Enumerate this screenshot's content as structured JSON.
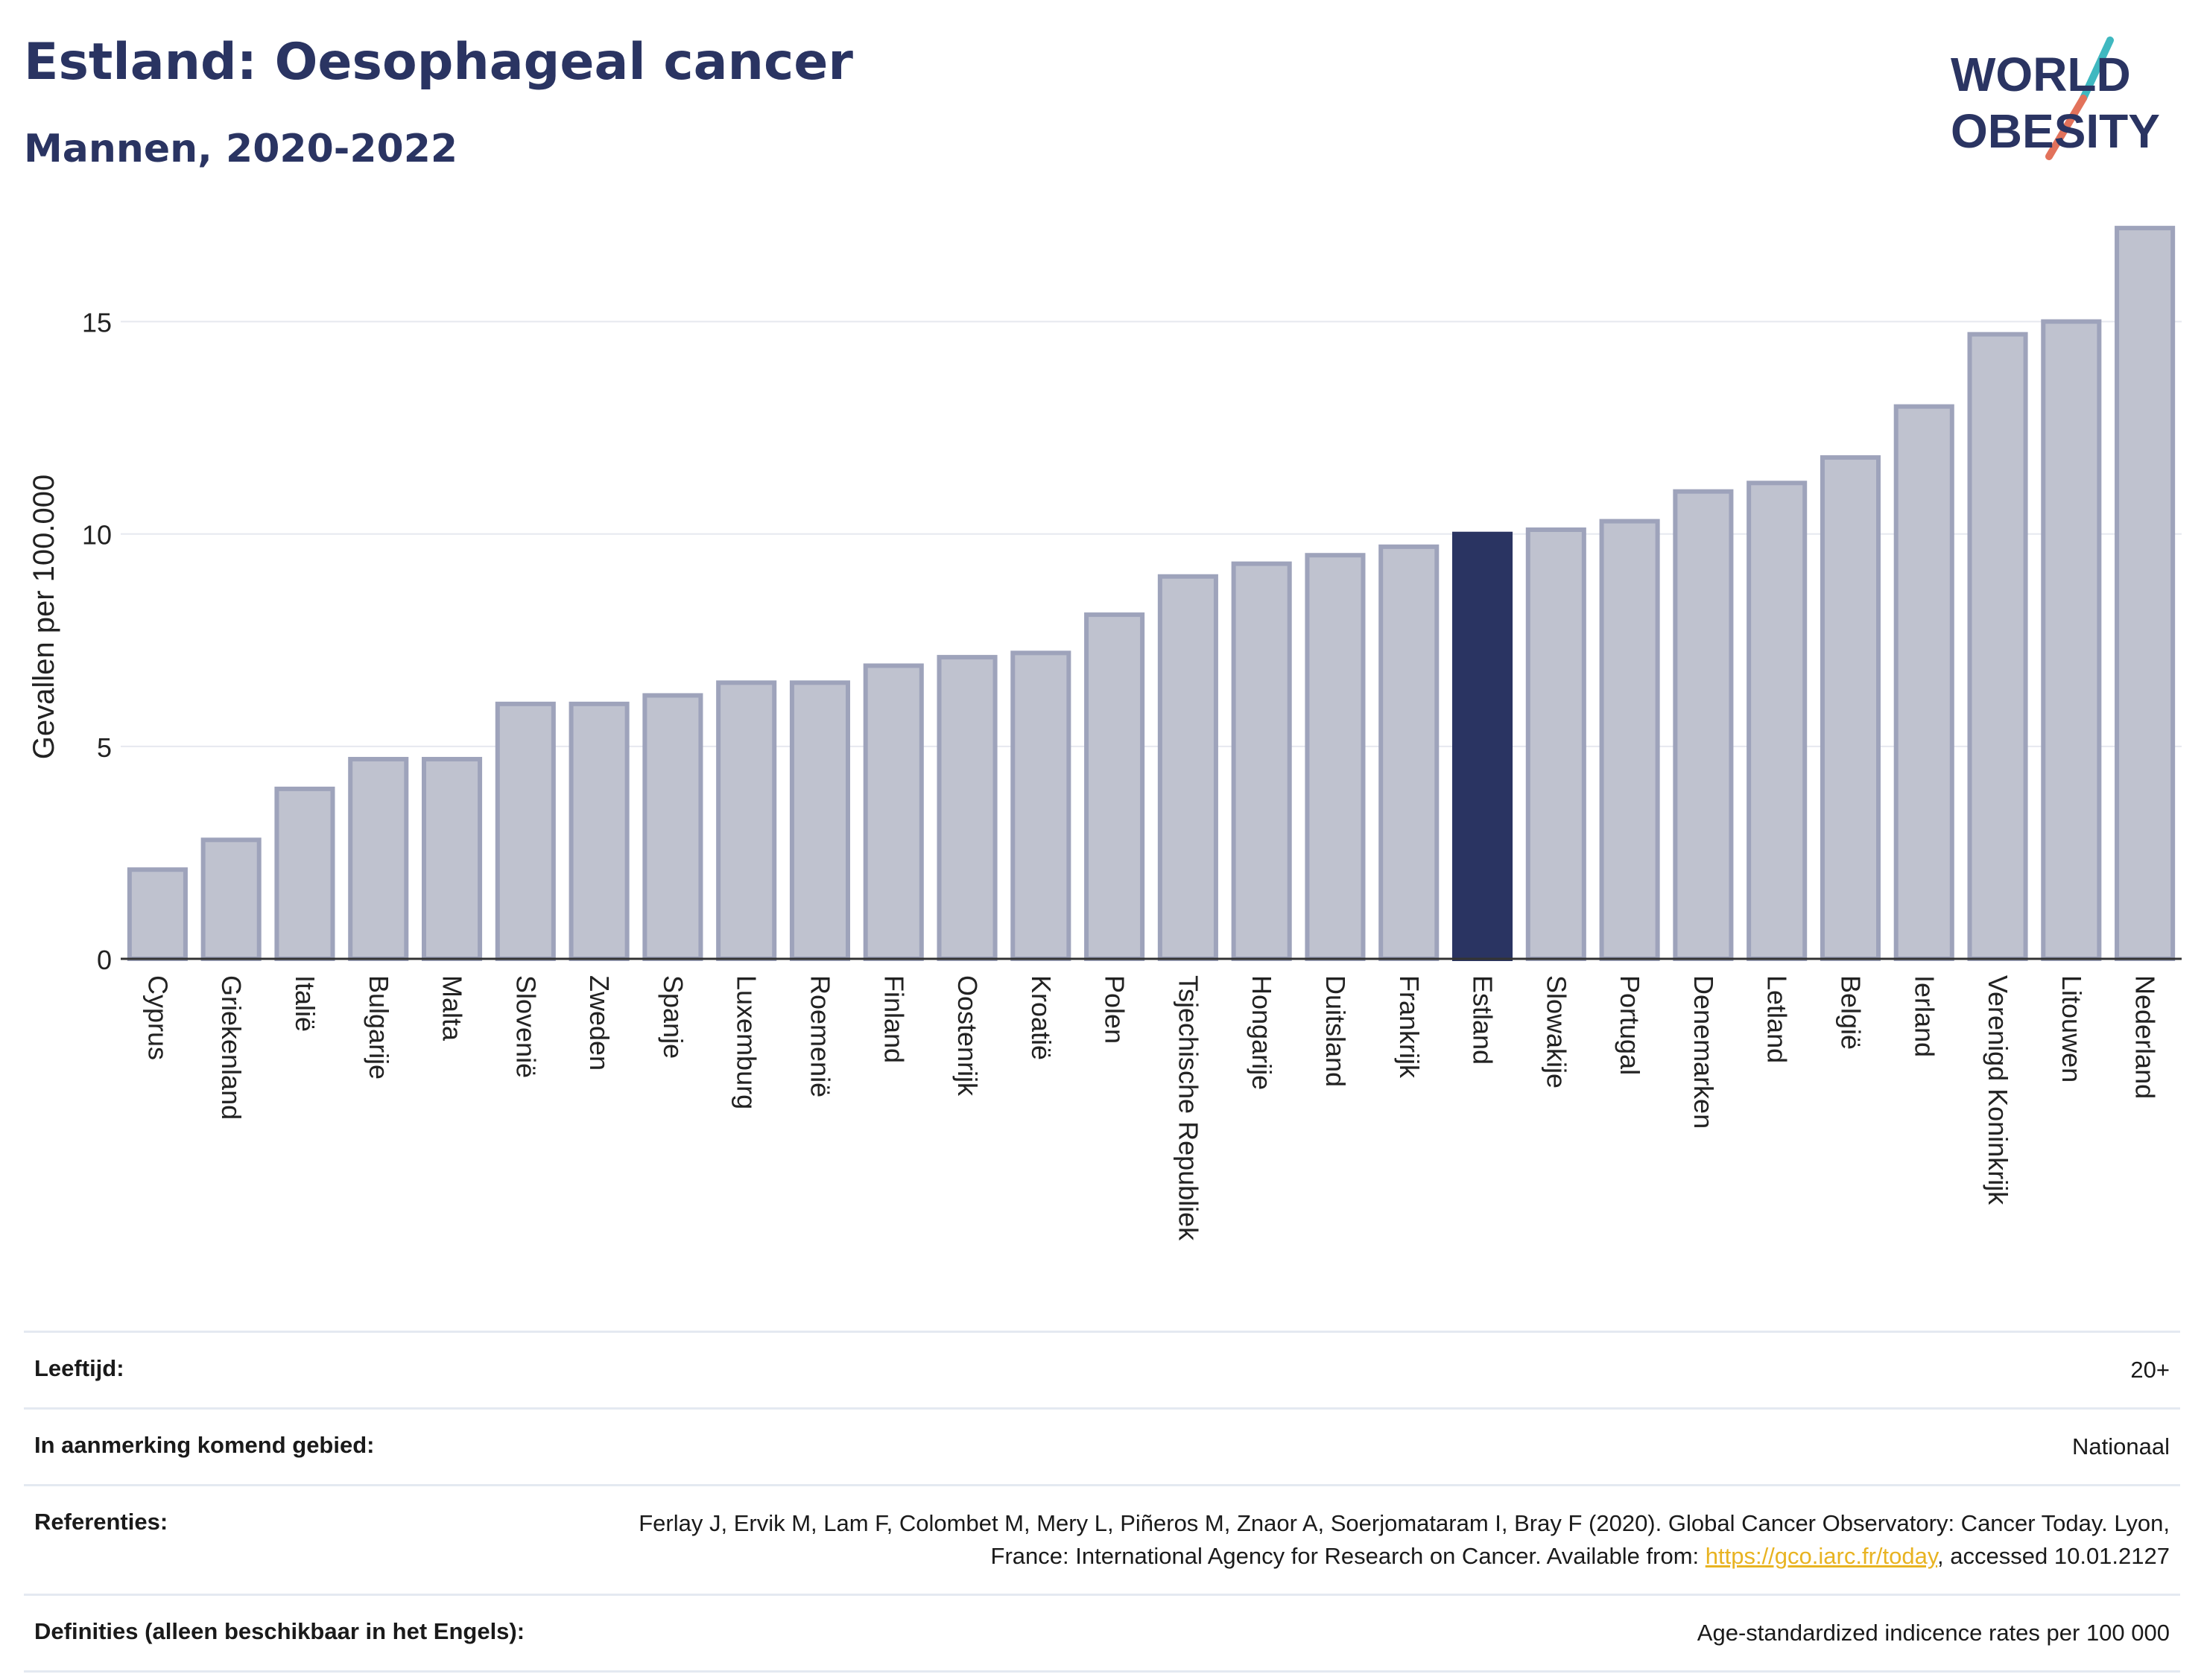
{
  "header": {
    "title": "Estland: Oesophageal cancer",
    "subtitle": "Mannen, 2020-2022"
  },
  "logo": {
    "line1": "WORLD",
    "line2": "OBESITY",
    "colors": {
      "text": "#2a3462",
      "slash_top": "#3fb8c0",
      "slash_bottom": "#e2725b"
    }
  },
  "chart_data": {
    "type": "bar",
    "ylabel": "Gevallen per 100.000",
    "xlabel": "",
    "ylim": [
      0,
      17.5
    ],
    "yticks": [
      0,
      5,
      10,
      15
    ],
    "grid": true,
    "highlight": "Estland",
    "colors": {
      "bar": "#bfc2cf",
      "bar_edge": "#9ea3bb",
      "highlight": "#2a3462",
      "grid": "#e6e8ef"
    },
    "categories": [
      "Cyprus",
      "Griekenland",
      "Italië",
      "Bulgarije",
      "Malta",
      "Slovenië",
      "Zweden",
      "Spanje",
      "Luxemburg",
      "Roemenië",
      "Finland",
      "Oostenrijk",
      "Kroatië",
      "Polen",
      "Tsjechische Republiek",
      "Hongarije",
      "Duitsland",
      "Frankrijk",
      "Estland",
      "Slowakije",
      "Portugal",
      "Denemarken",
      "Letland",
      "België",
      "Ierland",
      "Verenigd Koninkrijk",
      "Litouwen",
      "Nederland"
    ],
    "values": [
      2.1,
      2.8,
      4.0,
      4.7,
      4.7,
      6.0,
      6.0,
      6.2,
      6.5,
      6.5,
      6.9,
      7.1,
      7.2,
      8.1,
      9.0,
      9.3,
      9.5,
      9.7,
      10.0,
      10.1,
      10.3,
      11.0,
      11.2,
      11.8,
      13.0,
      14.7,
      15.0,
      17.2
    ]
  },
  "meta": {
    "age_label": "Leeftijd:",
    "age_value": "20+",
    "area_label": "In aanmerking komend gebied:",
    "area_value": "Nationaal",
    "ref_label": "Referenties:",
    "ref_text_1": "Ferlay J, Ervik M, Lam F, Colombet M, Mery L, Piñeros M, Znaor A, Soerjomataram I, Bray F (2020). Global Cancer Observatory: Cancer Today. Lyon, France: International Agency for Research on Cancer. Available from: ",
    "ref_link": "https://gco.iarc.fr/today",
    "ref_text_2": ", accessed 10.01.2127",
    "def_label": "Definities (alleen beschikbaar in het Engels):",
    "def_value": "Age-standardized indicence rates per 100 000"
  }
}
